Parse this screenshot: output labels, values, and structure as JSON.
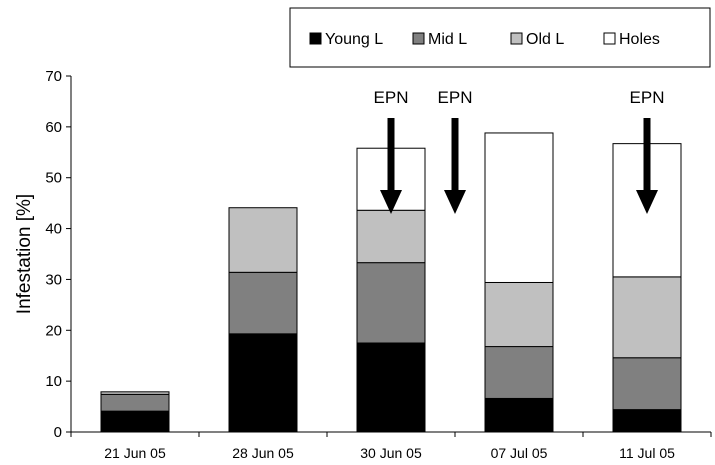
{
  "chart_data": {
    "type": "bar",
    "stacked": true,
    "title": "",
    "xlabel": "",
    "ylabel": "Infestation  [%]",
    "ylim": [
      0,
      70
    ],
    "yticks": [
      "0",
      "10",
      "20",
      "30",
      "40",
      "50",
      "60",
      "70"
    ],
    "grid": false,
    "legend_position": "top-right",
    "categories": [
      "21 Jun 05",
      "28 Jun 05",
      "30 Jun 05",
      "07 Jul 05",
      "11 Jul 05"
    ],
    "series": [
      {
        "name": "Young L",
        "color": "#000000",
        "values": [
          4.1,
          19.3,
          17.5,
          6.6,
          4.4
        ]
      },
      {
        "name": "Mid L",
        "color": "#808080",
        "values": [
          3.3,
          12.1,
          15.8,
          10.2,
          10.2
        ]
      },
      {
        "name": "Old L",
        "color": "#c0c0c0",
        "values": [
          0.5,
          12.7,
          10.3,
          12.6,
          15.9
        ]
      },
      {
        "name": "Holes",
        "color": "#ffffff",
        "values": [
          0,
          0,
          12.2,
          29.4,
          26.2
        ]
      }
    ],
    "annotations": [
      {
        "text": "EPN",
        "x": "30 Jun 05"
      },
      {
        "text": "EPN",
        "x": "between 30 Jun 05 and 07 Jul 05"
      },
      {
        "text": "EPN",
        "x": "11 Jul 05"
      }
    ]
  }
}
